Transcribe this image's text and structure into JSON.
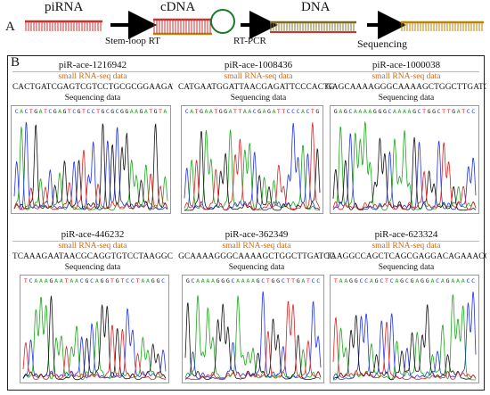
{
  "panel_a": {
    "letter": "A",
    "labels": {
      "pirna": "piRNA",
      "cdna": "cDNA",
      "dna": "DNA"
    },
    "steps": {
      "rt": "Stem-loop RT",
      "pcr": "RT-PCR",
      "seq": "Sequencing"
    }
  },
  "panel_b": {
    "letter": "B",
    "small_rna_label": "small RNA-seq data",
    "sequencing_label": "Sequencing data",
    "cells": [
      {
        "title": "piR-ace-1216942",
        "sequence": "CACTGATCGAGTCGTCCTGCGCGGAAGATGTA"
      },
      {
        "title": "piR-ace-1008436",
        "sequence": "CATGAATGGATTAACGAGATTCCCACTG"
      },
      {
        "title": "piR-ace-1000038",
        "sequence": "GAGCAAAAGGGCAAAAGCTGGCTTGATCC"
      },
      {
        "title": "piR-ace-446232",
        "sequence": "TCAAAGAATAACGCAGGTGTCCTAAGGC"
      },
      {
        "title": "piR-ace-362349",
        "sequence": "GCAAAAGGGCAAAAGCTGGCTTGATCC"
      },
      {
        "title": "piR-ace-623324",
        "sequence": "TAAGGCCAGCTCAGCGAGGACAGAAACC"
      }
    ]
  },
  "colors": {
    "A": "#1aa81a",
    "C": "#2233dd",
    "G": "#111111",
    "T": "#e02020",
    "accent": "#d06a14",
    "rna": "#c83232",
    "dna_top": "#7a6a20",
    "dna_bot": "#b8860b"
  }
}
